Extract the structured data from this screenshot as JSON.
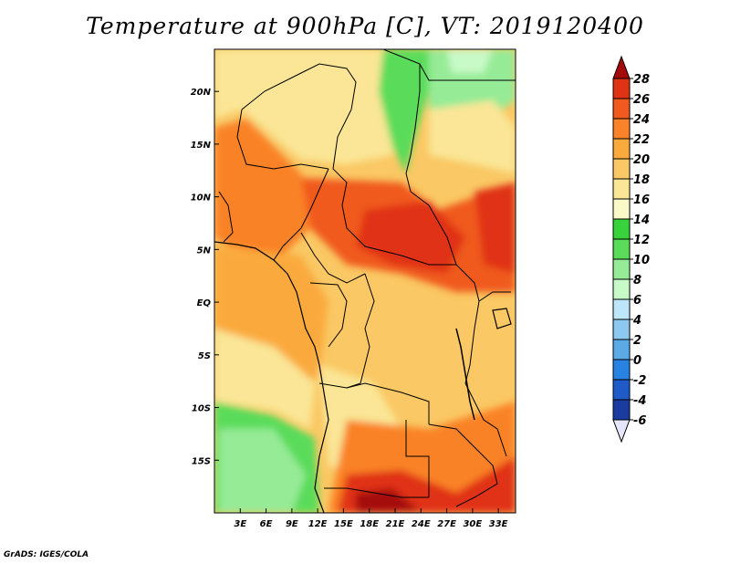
{
  "title": "Temperature at 900hPa [C], VT: 2019120400",
  "credit": "GrADS: IGES/COLA",
  "map": {
    "lon_labels": [
      "3E",
      "6E",
      "9E",
      "12E",
      "15E",
      "18E",
      "21E",
      "24E",
      "27E",
      "30E",
      "33E"
    ],
    "lat_labels": [
      "20N",
      "15N",
      "10N",
      "5N",
      "EQ",
      "5S",
      "10S",
      "15S"
    ],
    "lon_range": [
      0,
      35
    ],
    "lat_range": [
      -20,
      24
    ],
    "variable": "Temperature at 900hPa",
    "units": "C"
  },
  "colorbar": {
    "levels": [
      "28",
      "26",
      "24",
      "22",
      "20",
      "18",
      "16",
      "14",
      "12",
      "10",
      "8",
      "6",
      "4",
      "2",
      "0",
      "-2",
      "-4",
      "-6"
    ],
    "colors": [
      "#a50a0a",
      "#e03214",
      "#f05a1e",
      "#fa8228",
      "#faaa3c",
      "#fac864",
      "#fae696",
      "#fafac8",
      "#37d23c",
      "#5adc5a",
      "#96eb96",
      "#c8fac8",
      "#bee6fa",
      "#8cc8f0",
      "#5aaae6",
      "#2882e1",
      "#1e5ac8",
      "#1a3ca0",
      "#0a1e78"
    ],
    "top_arrow_color": "#a50a0a",
    "bottom_arrow_color": "#e6e6fa"
  }
}
